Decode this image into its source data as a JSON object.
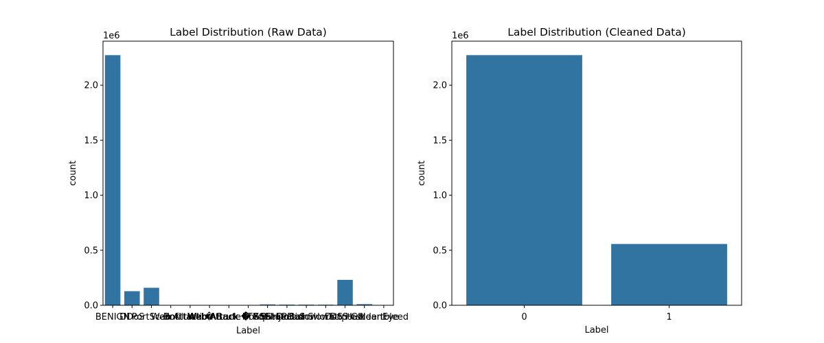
{
  "chart_data": [
    {
      "type": "bar",
      "title": "Label Distribution (Raw Data)",
      "xlabel": "Label",
      "ylabel": "count",
      "ylim": [
        0,
        2400000
      ],
      "yticks": [
        0,
        500000,
        1000000,
        1500000,
        2000000
      ],
      "ytick_labels": [
        "0.0",
        "0.5",
        "1.0",
        "1.5",
        "2.0"
      ],
      "y_offset_text": "1e6",
      "grid": false,
      "bar_color": "#3274a1",
      "categories": [
        "BENIGN",
        "DDoS",
        "PortScan",
        "Bot",
        "Infiltration",
        "Web Attack � Brute Force",
        "Web Attack � XSS",
        "Web Attack � Sql Injection",
        "FTP-Patator",
        "SSH-Patator",
        "DoS slowloris",
        "DoS Slowhttptest",
        "DoS Hulk",
        "DoS GoldenEye",
        "Heartbleed"
      ],
      "values": [
        2273000,
        128000,
        159000,
        2000,
        36,
        1500,
        650,
        21,
        7900,
        5900,
        5800,
        5500,
        231000,
        10300,
        11
      ]
    },
    {
      "type": "bar",
      "title": "Label Distribution (Cleaned Data)",
      "xlabel": "Label",
      "ylabel": "count",
      "ylim": [
        0,
        2400000
      ],
      "yticks": [
        0,
        500000,
        1000000,
        1500000,
        2000000
      ],
      "ytick_labels": [
        "0.0",
        "0.5",
        "1.0",
        "1.5",
        "2.0"
      ],
      "y_offset_text": "1e6",
      "grid": false,
      "bar_color": "#3274a1",
      "categories": [
        "0",
        "1"
      ],
      "values": [
        2273000,
        557000
      ]
    }
  ]
}
